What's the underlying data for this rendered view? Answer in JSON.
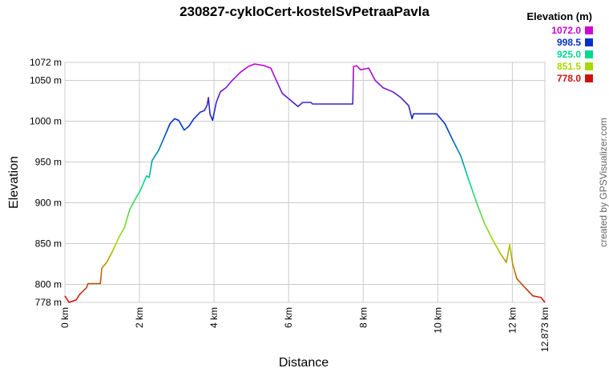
{
  "chart_data": {
    "type": "line",
    "title": "230827-cykloCert-kostelSvPetraaPavla",
    "x_label": "Distance",
    "y_label": "Elevation",
    "credit": "created by GPSVisualizer.com",
    "legend_title": "Elevation (m)",
    "color_scale": [
      {
        "value": 1072,
        "label": "1072.0",
        "color": "#d000d0"
      },
      {
        "value": 998.5,
        "label": "998.5",
        "color": "#0030c8"
      },
      {
        "value": 925,
        "label": "925.0",
        "color": "#00d890"
      },
      {
        "value": 851.5,
        "label": "851.5",
        "color": "#a8d800"
      },
      {
        "value": 778,
        "label": "778.0",
        "color": "#cc1010"
      }
    ],
    "grid": true,
    "xlim": [
      0,
      12.873
    ],
    "xticks": [
      {
        "value": 0,
        "label": "0 km"
      },
      {
        "value": 2,
        "label": "2 km"
      },
      {
        "value": 4,
        "label": "4 km"
      },
      {
        "value": 6,
        "label": "6 km"
      },
      {
        "value": 8,
        "label": "8 km"
      },
      {
        "value": 10,
        "label": "10 km"
      },
      {
        "value": 12,
        "label": "12 km"
      },
      {
        "value": 12.873,
        "label": "12.873 km"
      }
    ],
    "ylim": [
      778,
      1072
    ],
    "yticks": [
      {
        "value": 778,
        "label": "778 m"
      },
      {
        "value": 800,
        "label": "800 m"
      },
      {
        "value": 850,
        "label": "850 m"
      },
      {
        "value": 900,
        "label": "900 m"
      },
      {
        "value": 950,
        "label": "950 m"
      },
      {
        "value": 1000,
        "label": "1000 m"
      },
      {
        "value": 1050,
        "label": "1050 m"
      },
      {
        "value": 1072,
        "label": "1072 m"
      }
    ],
    "x": [
      0,
      0.11,
      0.3,
      0.4,
      0.58,
      0.62,
      0.95,
      0.99,
      1.12,
      1.27,
      1.44,
      1.59,
      1.74,
      1.87,
      2.02,
      2.19,
      2.26,
      2.34,
      2.51,
      2.66,
      2.82,
      2.94,
      3.05,
      3.2,
      3.33,
      3.46,
      3.63,
      3.74,
      3.81,
      3.85,
      3.89,
      3.96,
      4.06,
      4.17,
      4.32,
      4.49,
      4.71,
      4.92,
      5.09,
      5.35,
      5.52,
      5.67,
      5.83,
      6.04,
      6.25,
      6.38,
      6.6,
      6.64,
      7.72,
      7.74,
      7.82,
      7.93,
      8.15,
      8.32,
      8.53,
      8.79,
      9.01,
      9.22,
      9.31,
      9.35,
      9.97,
      10.19,
      10.4,
      10.62,
      10.83,
      11.05,
      11.26,
      11.48,
      11.69,
      11.84,
      11.93,
      12.01,
      12.12,
      12.34,
      12.55,
      12.77,
      12.873
    ],
    "series": [
      {
        "name": "Elevation",
        "values": [
          786,
          778,
          781,
          788,
          796,
          801,
          801,
          820,
          827,
          840,
          857,
          869,
          892,
          903,
          915,
          933,
          931,
          952,
          964,
          980,
          997,
          1003,
          1001,
          989,
          994,
          1003,
          1011,
          1013,
          1019,
          1029,
          1009,
          1001,
          1023,
          1036,
          1041,
          1050,
          1060,
          1067,
          1070,
          1068,
          1065,
          1050,
          1034,
          1026,
          1018,
          1023,
          1023,
          1021,
          1021,
          1067,
          1068,
          1063,
          1065,
          1050,
          1041,
          1036,
          1029,
          1019,
          1003,
          1009,
          1009,
          997,
          977,
          957,
          928,
          899,
          874,
          854,
          837,
          827,
          849,
          825,
          807,
          796,
          786,
          784,
          778
        ]
      }
    ]
  }
}
